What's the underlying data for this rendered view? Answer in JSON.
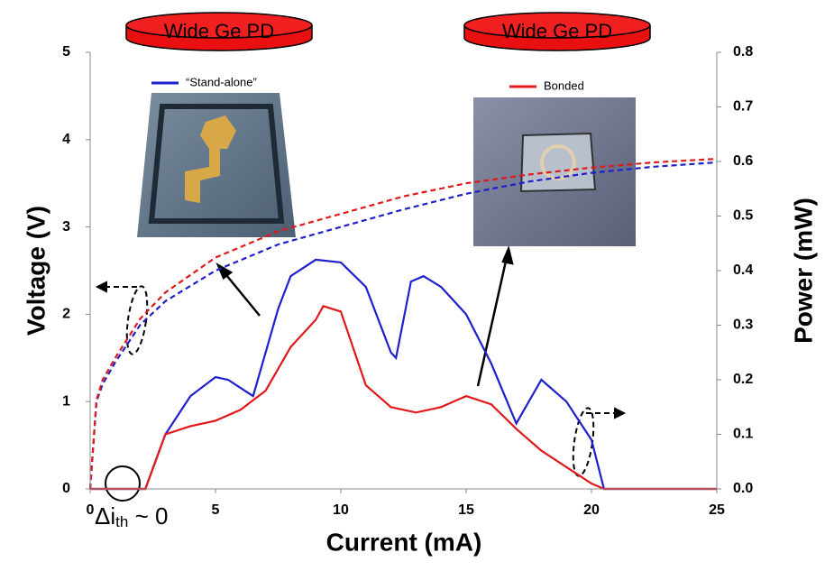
{
  "chart_data": {
    "type": "line",
    "xlabel": "Current (mA)",
    "ylabel": "Voltage (V)",
    "y2label": "Power (mW)",
    "xlim": [
      0,
      25
    ],
    "xticks": [
      0,
      5,
      10,
      15,
      20,
      25
    ],
    "ylim": [
      0,
      5
    ],
    "yticks": [
      0,
      1,
      2,
      3,
      4,
      5
    ],
    "y2lim": [
      0,
      0.8
    ],
    "y2ticks": [
      {
        "value": 0,
        "label": "0.0"
      },
      0.1,
      0.2,
      0.3,
      0.4,
      0.5,
      0.6,
      0.7,
      0.8
    ],
    "annotations": [
      "Wide Ge PD",
      "Wide Ge PD"
    ],
    "threshold_label": {
      "base": "Δi",
      "sub": "th",
      "rest": " ~ 0"
    },
    "series": [
      {
        "name": "“Stand-alone”",
        "color": "#1f1fcc",
        "style": "dashed",
        "axis": "y",
        "x": [
          0,
          0.25,
          0.5,
          1,
          2,
          3,
          5,
          7.5,
          10,
          12.5,
          15,
          17.5,
          20,
          22.5,
          25
        ],
        "values": [
          0,
          1.0,
          1.2,
          1.45,
          1.88,
          2.15,
          2.5,
          2.8,
          3.0,
          3.2,
          3.38,
          3.52,
          3.62,
          3.69,
          3.74
        ]
      },
      {
        "name": "Bonded",
        "color": "#e01a1a",
        "style": "dashed",
        "axis": "y",
        "x": [
          0,
          0.25,
          0.5,
          1,
          2,
          3,
          5,
          7.5,
          10,
          12.5,
          15,
          17.5,
          20,
          22.5,
          25
        ],
        "values": [
          0,
          1.02,
          1.25,
          1.5,
          1.95,
          2.25,
          2.65,
          2.95,
          3.15,
          3.35,
          3.5,
          3.6,
          3.68,
          3.74,
          3.78
        ]
      },
      {
        "color": "#1f1fcc",
        "style": "solid",
        "axis": "y2",
        "x": [
          0,
          2.2,
          3,
          4,
          5,
          5.5,
          6.5,
          7,
          7.5,
          8,
          9,
          10,
          11,
          12,
          12.2,
          12.8,
          13.3,
          14,
          15,
          16,
          17,
          17.5,
          18,
          19,
          20,
          20.5,
          25
        ],
        "values": [
          0,
          0,
          0.1,
          0.17,
          0.205,
          0.2,
          0.17,
          0.25,
          0.33,
          0.39,
          0.42,
          0.415,
          0.37,
          0.25,
          0.24,
          0.38,
          0.39,
          0.37,
          0.32,
          0.23,
          0.12,
          0.16,
          0.2,
          0.16,
          0.09,
          0,
          0
        ]
      },
      {
        "color": "#e01a1a",
        "style": "solid",
        "axis": "y2",
        "x": [
          0,
          2.2,
          3,
          4,
          5,
          6,
          7,
          8,
          9,
          9.3,
          10,
          11,
          12,
          13,
          14,
          15,
          16,
          17,
          18,
          19,
          20,
          20.5,
          25
        ],
        "values": [
          0,
          0,
          0.1,
          0.115,
          0.125,
          0.145,
          0.18,
          0.26,
          0.31,
          0.335,
          0.325,
          0.19,
          0.15,
          0.14,
          0.15,
          0.17,
          0.155,
          0.11,
          0.07,
          0.04,
          0.01,
          0,
          0
        ]
      }
    ]
  }
}
